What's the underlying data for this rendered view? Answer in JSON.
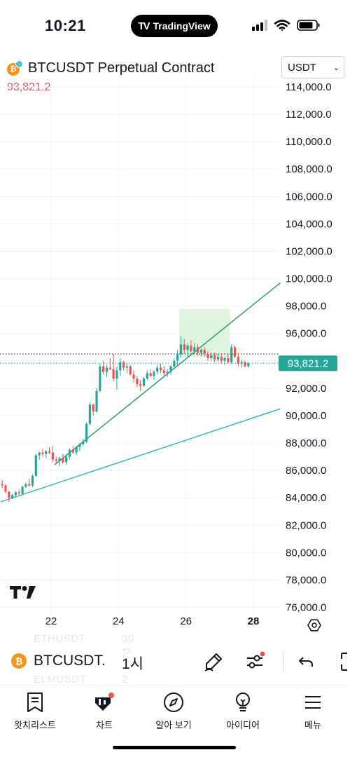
{
  "status_bar": {
    "time": "10:21",
    "brand": "TradingView",
    "icons": [
      "signal-icon",
      "wifi-icon",
      "battery-icon"
    ]
  },
  "header": {
    "symbol_title": "BTCUSDT Perpetual Contract",
    "last_price": "93,821.2",
    "currency": "USDT",
    "coin_glyph": "₿"
  },
  "colors": {
    "up": "#26a69a",
    "down": "#ef5350",
    "trend_green": "#2e9e6b",
    "trend_teal": "#36b6c8",
    "zone": "#d9f2d9",
    "price_tag": "#26a69a",
    "last_price_text": "#d9534f"
  },
  "chart_data": {
    "type": "candlestick",
    "y_axis_ticks": [
      "114,000.0",
      "112,000.0",
      "110,000.0",
      "108,000.0",
      "106,000.0",
      "104,000.0",
      "102,000.0",
      "100,000.0",
      "98,000.0",
      "96,000.0",
      "94,000.0",
      "92,000.0",
      "90,000.0",
      "88,000.0",
      "86,000.0",
      "84,000.0",
      "82,000.0",
      "80,000.0",
      "78,000.0",
      "76,000.0"
    ],
    "y_axis_values": [
      114000,
      112000,
      110000,
      108000,
      106000,
      104000,
      102000,
      100000,
      98000,
      96000,
      94000,
      92000,
      90000,
      88000,
      86000,
      84000,
      82000,
      80000,
      78000,
      76000
    ],
    "x_axis_ticks": [
      "22",
      "24",
      "26",
      "28"
    ],
    "x_axis_values": [
      22,
      24,
      26,
      28
    ],
    "current_price_label": "93,821.2",
    "current_price": 93821.2,
    "dotted_line_price": 94500,
    "trend_lines": [
      {
        "name": "upper",
        "from": [
          22.1,
          86400
        ],
        "to": [
          28.8,
          99700
        ]
      },
      {
        "name": "lower",
        "from": [
          20.5,
          83700
        ],
        "to": [
          28.8,
          90500
        ]
      }
    ],
    "zone_box": {
      "x": [
        25.8,
        27.3
      ],
      "y": [
        94300,
        97800
      ]
    },
    "candles": [
      [
        20.55,
        85000,
        85300,
        84700,
        84900
      ],
      [
        20.65,
        84900,
        85000,
        84300,
        84450
      ],
      [
        20.75,
        84450,
        84500,
        83700,
        84000
      ],
      [
        20.85,
        84000,
        84300,
        83900,
        84200
      ],
      [
        20.95,
        84200,
        84500,
        84100,
        84400
      ],
      [
        21.05,
        84400,
        84600,
        84200,
        84300
      ],
      [
        21.15,
        84300,
        84900,
        84200,
        84800
      ],
      [
        21.25,
        84800,
        85100,
        84700,
        85000
      ],
      [
        21.35,
        85000,
        85400,
        84800,
        84900
      ],
      [
        21.45,
        84900,
        85700,
        84800,
        85600
      ],
      [
        21.55,
        85600,
        87200,
        85500,
        87100
      ],
      [
        21.65,
        87100,
        87400,
        86800,
        87300
      ],
      [
        21.75,
        87300,
        87600,
        87000,
        87200
      ],
      [
        21.85,
        87200,
        87500,
        86900,
        87400
      ],
      [
        21.95,
        87400,
        87700,
        87200,
        87300
      ],
      [
        22.05,
        87300,
        87800,
        86600,
        86800
      ],
      [
        22.15,
        86800,
        87000,
        86500,
        86700
      ],
      [
        22.25,
        86700,
        87000,
        86300,
        86900
      ],
      [
        22.35,
        86900,
        87200,
        86500,
        86600
      ],
      [
        22.45,
        86600,
        87200,
        86400,
        87000
      ],
      [
        22.55,
        87000,
        87600,
        86800,
        87500
      ],
      [
        22.65,
        87500,
        87800,
        87200,
        87300
      ],
      [
        22.75,
        87300,
        87800,
        87100,
        87700
      ],
      [
        22.85,
        87700,
        88000,
        87400,
        87900
      ],
      [
        22.95,
        87900,
        88300,
        87800,
        88100
      ],
      [
        23.05,
        88100,
        89500,
        88000,
        89400
      ],
      [
        23.15,
        89400,
        91000,
        89300,
        90800
      ],
      [
        23.25,
        90800,
        90900,
        90000,
        90300
      ],
      [
        23.35,
        90300,
        92000,
        90200,
        91800
      ],
      [
        23.45,
        91800,
        93800,
        91700,
        93600
      ],
      [
        23.55,
        93600,
        94000,
        93000,
        93200
      ],
      [
        23.65,
        93200,
        93700,
        92800,
        93500
      ],
      [
        23.75,
        93500,
        94200,
        93300,
        93400
      ],
      [
        23.85,
        93400,
        94500,
        92500,
        92700
      ],
      [
        23.95,
        92700,
        93600,
        91900,
        93300
      ],
      [
        24.05,
        93300,
        94200,
        92900,
        93900
      ],
      [
        24.15,
        93900,
        94000,
        93300,
        93500
      ],
      [
        24.25,
        93500,
        93800,
        93100,
        93600
      ],
      [
        24.35,
        93600,
        93700,
        92900,
        93000
      ],
      [
        24.45,
        93000,
        93300,
        92400,
        92700
      ],
      [
        24.55,
        92700,
        92900,
        92100,
        92300
      ],
      [
        24.65,
        92300,
        92600,
        91800,
        92200
      ],
      [
        24.75,
        92200,
        92800,
        92100,
        92700
      ],
      [
        24.85,
        92700,
        93300,
        92600,
        93100
      ],
      [
        24.95,
        93100,
        93400,
        92800,
        92900
      ],
      [
        25.05,
        92900,
        93300,
        92600,
        93200
      ],
      [
        25.15,
        93200,
        93700,
        93000,
        93500
      ],
      [
        25.25,
        93500,
        93800,
        93100,
        93300
      ],
      [
        25.35,
        93300,
        93600,
        92900,
        93100
      ],
      [
        25.45,
        93100,
        93400,
        92800,
        93200
      ],
      [
        25.55,
        93200,
        93700,
        93000,
        93600
      ],
      [
        25.65,
        93600,
        94200,
        93400,
        94000
      ],
      [
        25.75,
        94000,
        94800,
        93700,
        94500
      ],
      [
        25.85,
        94500,
        95800,
        94200,
        95200
      ],
      [
        25.95,
        95200,
        95600,
        94500,
        94800
      ],
      [
        26.05,
        94800,
        95300,
        94300,
        95100
      ],
      [
        26.15,
        95100,
        95500,
        94600,
        94700
      ],
      [
        26.25,
        94700,
        95300,
        94500,
        95000
      ],
      [
        26.35,
        95000,
        95200,
        94400,
        94600
      ],
      [
        26.45,
        94600,
        94900,
        94300,
        94800
      ],
      [
        26.55,
        94800,
        95000,
        94300,
        94500
      ],
      [
        26.65,
        94500,
        94700,
        94000,
        94200
      ],
      [
        26.75,
        94200,
        94600,
        94000,
        94400
      ],
      [
        26.85,
        94400,
        94600,
        93900,
        94100
      ],
      [
        26.95,
        94100,
        94500,
        93900,
        94300
      ],
      [
        27.05,
        94300,
        94500,
        93800,
        94000
      ],
      [
        27.15,
        94000,
        94300,
        93700,
        94200
      ],
      [
        27.25,
        94200,
        94500,
        93800,
        93900
      ],
      [
        27.35,
        93900,
        95200,
        93800,
        95000
      ],
      [
        27.45,
        95000,
        95100,
        94200,
        94300
      ],
      [
        27.55,
        94300,
        94600,
        93600,
        93800
      ],
      [
        27.65,
        93800,
        94100,
        93500,
        93900
      ],
      [
        27.75,
        93900,
        94000,
        93500,
        93600
      ],
      [
        27.85,
        93600,
        93900,
        93500,
        93821
      ]
    ]
  },
  "symbol_bar": {
    "ghost_top_symbol": "ETHUSDT",
    "ghost_top_tf": "30분",
    "symbol": "BTCUSDT.",
    "timeframe": "1시",
    "ghost_bottom_symbol": "ELMUSDT",
    "ghost_bottom_tf": "2시"
  },
  "bottom_nav": {
    "items": [
      {
        "label": "왓치리스트",
        "icon": "watchlist-icon"
      },
      {
        "label": "차트",
        "icon": "chart-icon"
      },
      {
        "label": "알아 보기",
        "icon": "compass-icon"
      },
      {
        "label": "아이디어",
        "icon": "lightbulb-icon"
      },
      {
        "label": "메뉴",
        "icon": "menu-icon"
      }
    ]
  }
}
